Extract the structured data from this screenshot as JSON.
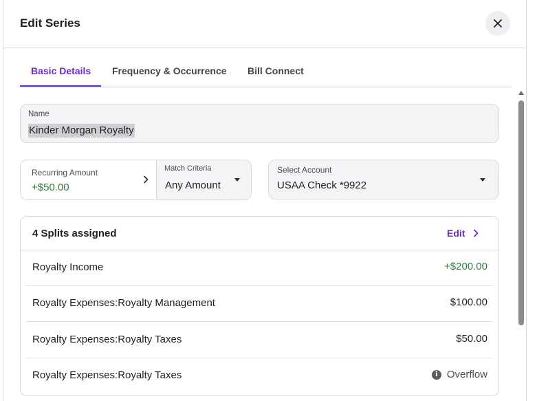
{
  "dialog": {
    "title": "Edit Series",
    "close_icon": "close-icon"
  },
  "tabs": [
    {
      "label": "Basic Details",
      "active": true
    },
    {
      "label": "Frequency & Occurrence",
      "active": false
    },
    {
      "label": "Bill Connect",
      "active": false
    }
  ],
  "name_field": {
    "label": "Name",
    "value": "Kinder Morgan Royalty"
  },
  "recurring_amount": {
    "label": "Recurring Amount",
    "value": "+$50.00",
    "icon": "chevron-right-icon"
  },
  "match_criteria": {
    "label": "Match Criteria",
    "value": "Any Amount",
    "icon": "caret-down-icon"
  },
  "account": {
    "label": "Select Account",
    "value": "USAA Check *9922",
    "icon": "caret-down-icon"
  },
  "splits": {
    "title": "4 Splits assigned",
    "edit_label": "Edit",
    "rows": [
      {
        "name": "Royalty Income",
        "amount": "+$200.00",
        "status": "positive"
      },
      {
        "name": "Royalty Expenses:Royalty Management",
        "amount": "$100.00",
        "status": "normal"
      },
      {
        "name": "Royalty Expenses:Royalty Taxes",
        "amount": "$50.00",
        "status": "normal"
      },
      {
        "name": "Royalty Expenses:Royalty Taxes",
        "amount": "Overflow",
        "status": "overflow",
        "icon": "info-icon"
      }
    ]
  },
  "colors": {
    "accent": "#6d28d9",
    "positive": "#2e7d3c",
    "border": "#dcdce0",
    "field_bg": "#f4f4f6"
  }
}
